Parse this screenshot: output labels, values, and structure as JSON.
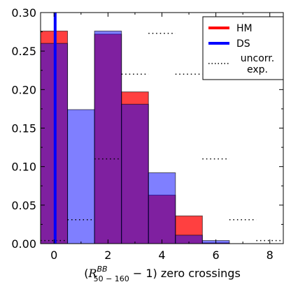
{
  "chart_data": {
    "type": "bar",
    "xlim": [
      -0.5,
      8.5
    ],
    "ylim": [
      0,
      0.3
    ],
    "xticks": [
      "0",
      "2",
      "4",
      "6",
      "8"
    ],
    "yticks": [
      "0.00",
      "0.05",
      "0.10",
      "0.15",
      "0.20",
      "0.25",
      "0.30"
    ],
    "xlabel_prefix": "(",
    "xlabel_main": "R",
    "xlabel_sup": "BB",
    "xlabel_sub": "50 − 160",
    "xlabel_suffix": " − 1) zero crossings",
    "categories": [
      0,
      1,
      2,
      3,
      4,
      5,
      6,
      7,
      8
    ],
    "series": [
      {
        "name": "HM",
        "color": "#ff0000",
        "alpha": 0.75,
        "values": [
          0.276,
          0.0,
          0.272,
          0.197,
          0.063,
          0.036,
          0.001,
          0.0,
          0.0
        ]
      },
      {
        "name": "DS",
        "color": "#0000ff",
        "alpha": 0.5,
        "values": [
          0.26,
          0.174,
          0.276,
          0.181,
          0.092,
          0.011,
          0.004,
          0.0,
          0.0
        ]
      }
    ],
    "ds_line_x": 0.04,
    "uncorr_exp": {
      "name": "uncorr. exp.",
      "values": [
        0.004,
        0.031,
        0.11,
        0.22,
        0.273,
        0.22,
        0.11,
        0.031,
        0.004
      ]
    },
    "legend_position": "top-right",
    "grid": false
  }
}
